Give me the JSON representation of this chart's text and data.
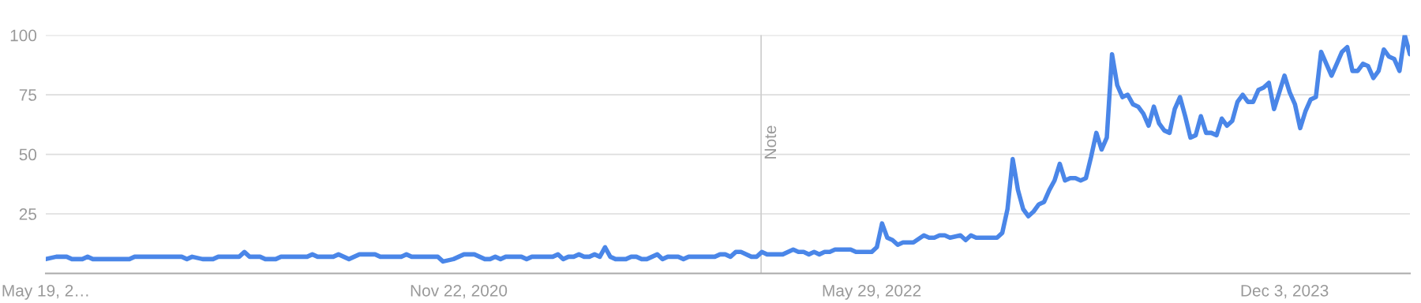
{
  "chart_data": {
    "type": "line",
    "xlim": [
      "2019-05-19",
      "2024-05-19"
    ],
    "xticks": [
      {
        "value": "2019-05-19",
        "label": "May 19, 2…"
      },
      {
        "value": "2020-11-22",
        "label": "Nov 22, 2020"
      },
      {
        "value": "2022-05-29",
        "label": "May 29, 2022"
      },
      {
        "value": "2023-12-03",
        "label": "Dec 3, 2023"
      }
    ],
    "ylim": [
      0,
      100
    ],
    "yticks": [
      25,
      50,
      75,
      100
    ],
    "grid": "y",
    "marker": "none",
    "line_style": "solid",
    "ref_lines": [
      {
        "axis": "x",
        "value": "2022-01-01",
        "label": "Note",
        "color": "#cccccc"
      }
    ],
    "series": [
      {
        "color": "#4a86e8",
        "x": [
          "2019-05-19",
          "2019-06-02",
          "2019-06-16",
          "2019-06-23",
          "2019-07-07",
          "2019-07-14",
          "2019-07-21",
          "2019-09-08",
          "2019-09-15",
          "2019-11-17",
          "2019-11-24",
          "2019-12-01",
          "2019-12-15",
          "2019-12-29",
          "2020-01-05",
          "2020-02-02",
          "2020-02-09",
          "2020-02-16",
          "2020-03-01",
          "2020-03-08",
          "2020-03-22",
          "2020-03-29",
          "2020-05-03",
          "2020-05-10",
          "2020-05-17",
          "2020-06-07",
          "2020-06-14",
          "2020-06-28",
          "2020-07-12",
          "2020-08-02",
          "2020-08-09",
          "2020-09-06",
          "2020-09-13",
          "2020-09-20",
          "2020-10-25",
          "2020-11-01",
          "2020-11-15",
          "2020-11-22",
          "2020-11-29",
          "2020-12-13",
          "2020-12-20",
          "2020-12-27",
          "2021-01-03",
          "2021-01-10",
          "2021-01-17",
          "2021-01-24",
          "2021-02-14",
          "2021-02-21",
          "2021-02-28",
          "2021-03-28",
          "2021-04-04",
          "2021-04-11",
          "2021-04-18",
          "2021-04-25",
          "2021-05-02",
          "2021-05-09",
          "2021-05-16",
          "2021-05-23",
          "2021-05-30",
          "2021-06-06",
          "2021-06-13",
          "2021-06-20",
          "2021-07-04",
          "2021-07-11",
          "2021-07-18",
          "2021-07-25",
          "2021-08-01",
          "2021-08-15",
          "2021-08-22",
          "2021-08-29",
          "2021-09-12",
          "2021-09-19",
          "2021-09-26",
          "2021-10-31",
          "2021-11-07",
          "2021-11-14",
          "2021-11-21",
          "2021-11-28",
          "2021-12-05",
          "2021-12-19",
          "2021-12-26",
          "2022-01-02",
          "2022-01-09",
          "2022-01-30",
          "2022-02-13",
          "2022-02-20",
          "2022-02-27",
          "2022-03-06",
          "2022-03-13",
          "2022-03-20",
          "2022-03-27",
          "2022-04-03",
          "2022-04-10",
          "2022-05-01",
          "2022-05-08",
          "2022-05-29",
          "2022-06-05",
          "2022-06-12",
          "2022-06-19",
          "2022-06-26",
          "2022-07-03",
          "2022-07-10",
          "2022-07-24",
          "2022-08-07",
          "2022-08-14",
          "2022-08-21",
          "2022-08-28",
          "2022-09-04",
          "2022-09-11",
          "2022-09-25",
          "2022-10-02",
          "2022-10-09",
          "2022-10-16",
          "2022-11-13",
          "2022-11-20",
          "2022-11-27",
          "2022-12-04",
          "2022-12-11",
          "2022-12-18",
          "2022-12-25",
          "2023-01-01",
          "2023-01-08",
          "2023-01-15",
          "2023-01-22",
          "2023-01-29",
          "2023-02-05",
          "2023-02-12",
          "2023-02-19",
          "2023-02-26",
          "2023-03-05",
          "2023-03-12",
          "2023-03-19",
          "2023-03-26",
          "2023-04-02",
          "2023-04-09",
          "2023-04-16",
          "2023-04-23",
          "2023-04-30",
          "2023-05-07",
          "2023-05-14",
          "2023-05-21",
          "2023-05-28",
          "2023-06-04",
          "2023-06-11",
          "2023-06-18",
          "2023-06-25",
          "2023-07-02",
          "2023-07-09",
          "2023-07-16",
          "2023-07-23",
          "2023-07-30",
          "2023-08-06",
          "2023-08-13",
          "2023-08-20",
          "2023-08-27",
          "2023-09-03",
          "2023-09-10",
          "2023-09-17",
          "2023-09-24",
          "2023-10-01",
          "2023-10-08",
          "2023-10-15",
          "2023-10-22",
          "2023-10-29",
          "2023-11-05",
          "2023-11-12",
          "2023-11-19",
          "2023-11-26",
          "2023-12-03",
          "2023-12-10",
          "2023-12-17",
          "2023-12-24",
          "2023-12-31",
          "2024-01-07",
          "2024-01-14",
          "2024-01-21",
          "2024-01-28",
          "2024-02-04",
          "2024-02-11",
          "2024-02-18",
          "2024-02-25",
          "2024-03-03",
          "2024-03-10",
          "2024-03-17",
          "2024-03-24",
          "2024-03-31",
          "2024-04-07",
          "2024-04-14",
          "2024-04-21",
          "2024-04-28",
          "2024-05-05",
          "2024-05-12",
          "2024-05-19"
        ],
        "values": [
          6,
          7,
          7,
          6,
          6,
          7,
          6,
          6,
          7,
          7,
          6,
          7,
          6,
          6,
          7,
          7,
          9,
          7,
          7,
          6,
          6,
          7,
          7,
          8,
          7,
          7,
          8,
          6,
          8,
          8,
          7,
          7,
          8,
          7,
          7,
          5,
          6,
          7,
          8,
          8,
          7,
          6,
          6,
          7,
          6,
          7,
          7,
          6,
          7,
          7,
          8,
          6,
          7,
          7,
          8,
          7,
          7,
          8,
          7,
          11,
          7,
          6,
          6,
          7,
          7,
          6,
          6,
          8,
          6,
          7,
          7,
          6,
          7,
          7,
          8,
          8,
          7,
          9,
          9,
          7,
          7,
          9,
          8,
          8,
          10,
          9,
          9,
          8,
          9,
          8,
          9,
          9,
          10,
          10,
          9,
          9,
          11,
          21,
          15,
          14,
          12,
          13,
          13,
          16,
          15,
          15,
          16,
          16,
          15,
          16,
          14,
          16,
          15,
          15,
          17,
          27,
          48,
          35,
          27,
          24,
          26,
          29,
          30,
          35,
          39,
          46,
          39,
          40,
          40,
          39,
          40,
          49,
          59,
          52,
          57,
          92,
          79,
          74,
          75,
          71,
          70,
          67,
          62,
          70,
          63,
          60,
          59,
          69,
          74,
          66,
          57,
          58,
          66,
          59,
          59,
          58,
          65,
          62,
          64,
          72,
          75,
          72,
          72,
          77,
          78,
          80,
          69,
          76,
          83,
          76,
          71,
          61,
          68,
          73,
          74,
          93,
          88,
          83,
          88,
          93,
          95,
          85,
          85,
          88,
          87,
          82,
          85,
          94,
          91,
          90,
          85,
          100,
          92
        ]
      }
    ]
  }
}
